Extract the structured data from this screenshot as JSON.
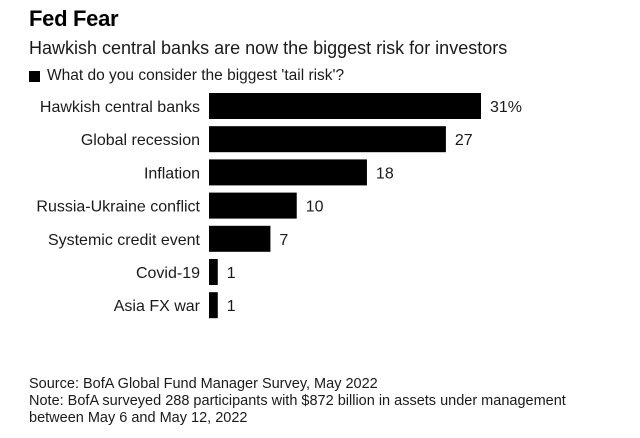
{
  "header": {
    "title": "Fed Fear",
    "subtitle": "Hawkish central banks are now the biggest risk for investors"
  },
  "legend": {
    "label": "What do you consider the biggest 'tail risk'?"
  },
  "chart_data": {
    "type": "bar",
    "orientation": "horizontal",
    "title": "Fed Fear",
    "subtitle": "Hawkish central banks are now the biggest risk for investors",
    "categories": [
      "Hawkish central banks",
      "Global recession",
      "Inflation",
      "Russia-Ukraine conflict",
      "Systemic credit event",
      "Covid-19",
      "Asia FX war"
    ],
    "series": [
      {
        "name": "What do you consider the biggest 'tail risk'?",
        "values": [
          31,
          27,
          18,
          10,
          7,
          1,
          1
        ],
        "labels": [
          "31%",
          "27",
          "18",
          "10",
          "7",
          "1",
          "1"
        ]
      }
    ],
    "xlim": [
      0,
      31
    ],
    "grid": false,
    "legend_position": "top-left",
    "bar_color": "#000000"
  },
  "footer": {
    "source": "Source: BofA Global Fund Manager Survey, May 2022",
    "note_line1": "Note: BofA surveyed 288 participants with $872 billion in assets under management",
    "note_line2": "between May 6 and May 12, 2022"
  }
}
